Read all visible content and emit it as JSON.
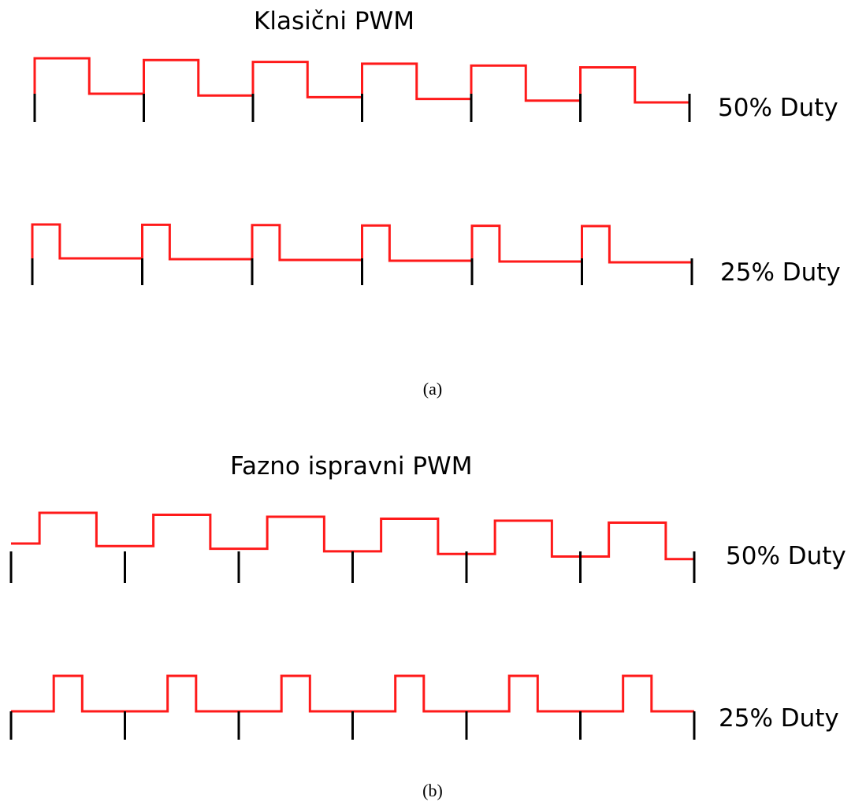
{
  "figure_a": {
    "title": "Klasični PWM",
    "caption": "(a)",
    "row_top": {
      "label": "50% Duty",
      "duty": 0.5
    },
    "row_bottom": {
      "label": "25% Duty",
      "duty": 0.25
    }
  },
  "figure_b": {
    "title": "Fazno ispravni PWM",
    "caption": "(b)",
    "row_top": {
      "label": "50% Duty",
      "duty": 0.5
    },
    "row_bottom": {
      "label": "25% Duty",
      "duty": 0.25
    }
  },
  "colors": {
    "waveform": "#ff1a1a",
    "tick": "#000000",
    "text": "#000000",
    "background": "#ffffff"
  }
}
